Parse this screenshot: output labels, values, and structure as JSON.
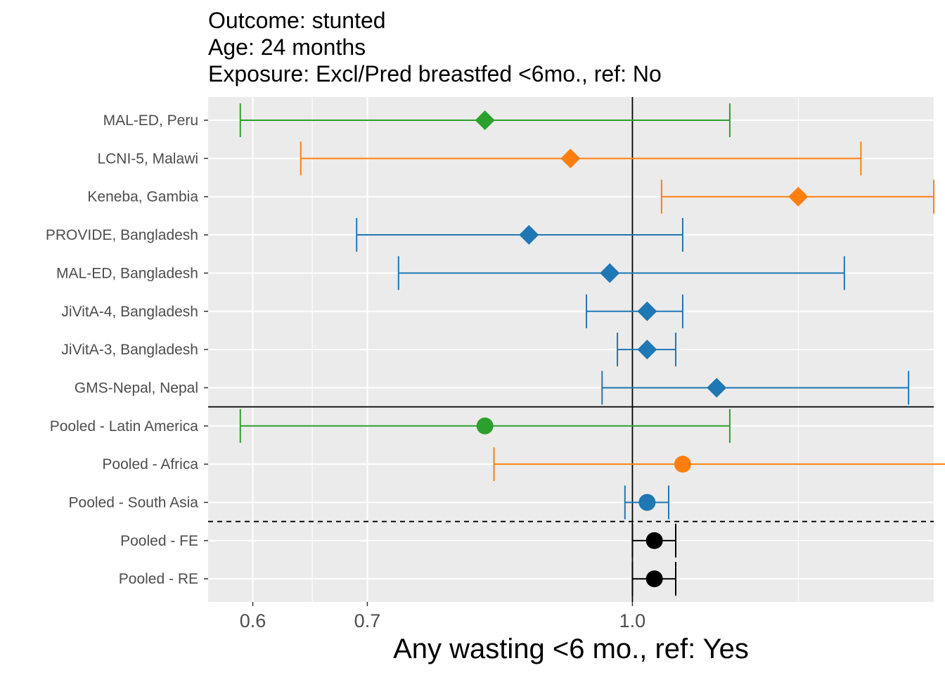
{
  "title_lines": [
    "Outcome: stunted",
    "Age: 24 months",
    "Exposure: Excl/Pred breastfed <6mo., ref: No"
  ],
  "chart_data": {
    "type": "forest",
    "xlabel": "Any wasting  <6 mo., ref: Yes",
    "x_scale": "log",
    "xlim": [
      0.565,
      1.5
    ],
    "x_ticks": [
      0.6,
      0.7,
      1.0
    ],
    "x_tick_labels": [
      "0.6",
      "0.7",
      "1.0"
    ],
    "x_minor_ticks": [
      0.65,
      1.25
    ],
    "reference_line": 1.0,
    "grid": true,
    "colors": {
      "Latin America": "#2ca02c",
      "Africa": "#ff7f0e",
      "South Asia": "#1f77b4",
      "Overall": "#000000"
    },
    "rows": [
      {
        "label": "MAL-ED, Peru",
        "estimate": 0.82,
        "lower": 0.59,
        "upper": 1.14,
        "region": "Latin America",
        "marker": "diamond"
      },
      {
        "label": "LCNI-5, Malawi",
        "estimate": 0.92,
        "lower": 0.64,
        "upper": 1.36,
        "region": "Africa",
        "marker": "diamond"
      },
      {
        "label": "Keneba, Gambia",
        "estimate": 1.25,
        "lower": 1.04,
        "upper": 1.5,
        "region": "Africa",
        "marker": "diamond"
      },
      {
        "label": "PROVIDE, Bangladesh",
        "estimate": 0.87,
        "lower": 0.69,
        "upper": 1.07,
        "region": "South Asia",
        "marker": "diamond"
      },
      {
        "label": "MAL-ED, Bangladesh",
        "estimate": 0.97,
        "lower": 0.73,
        "upper": 1.33,
        "region": "South Asia",
        "marker": "diamond"
      },
      {
        "label": "JiVitA-4, Bangladesh",
        "estimate": 1.02,
        "lower": 0.94,
        "upper": 1.07,
        "region": "South Asia",
        "marker": "diamond"
      },
      {
        "label": "JiVitA-3, Bangladesh",
        "estimate": 1.02,
        "lower": 0.98,
        "upper": 1.06,
        "region": "South Asia",
        "marker": "diamond"
      },
      {
        "label": "GMS-Nepal, Nepal",
        "estimate": 1.12,
        "lower": 0.96,
        "upper": 1.45,
        "region": "South Asia",
        "marker": "diamond"
      },
      {
        "label": "Pooled - Latin America",
        "estimate": 0.82,
        "lower": 0.59,
        "upper": 1.14,
        "region": "Latin America",
        "marker": "circle"
      },
      {
        "label": "Pooled - Africa",
        "estimate": 1.07,
        "lower": 0.83,
        "upper": 1.53,
        "region": "Africa",
        "marker": "circle"
      },
      {
        "label": "Pooled - South Asia",
        "estimate": 1.02,
        "lower": 0.99,
        "upper": 1.05,
        "region": "South Asia",
        "marker": "circle"
      },
      {
        "label": "Pooled - FE",
        "estimate": 1.03,
        "lower": 1.0,
        "upper": 1.06,
        "region": "Overall",
        "marker": "circle"
      },
      {
        "label": "Pooled - RE",
        "estimate": 1.03,
        "lower": 1.0,
        "upper": 1.06,
        "region": "Overall",
        "marker": "circle"
      }
    ]
  }
}
